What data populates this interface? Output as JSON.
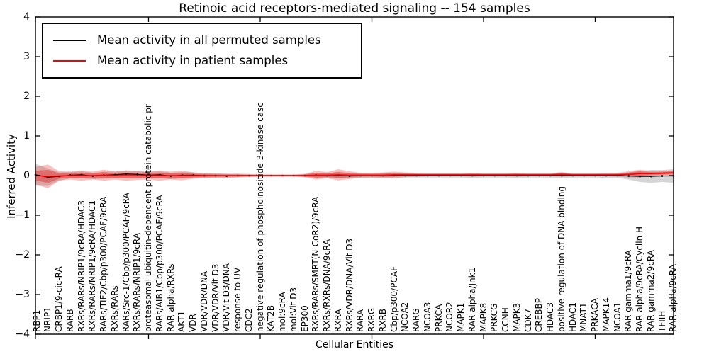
{
  "title": "Retinoic acid receptors-mediated signaling -- 154 samples",
  "axes": {
    "ylabel": "Inferred Activity",
    "xlabel": "Cellular Entities",
    "y_ticks": [
      "4",
      "3",
      "2",
      "1",
      "0",
      "−1",
      "−2",
      "−3",
      "−4"
    ],
    "ylim": [
      -4,
      4
    ]
  },
  "legend": {
    "items": [
      {
        "label": "Mean activity in all permuted samples",
        "color": "#000000"
      },
      {
        "label": "Mean activity in patient samples",
        "color": "#ff0000"
      }
    ]
  },
  "chart_data": {
    "type": "line",
    "title": "Retinoic acid receptors-mediated signaling -- 154 samples",
    "xlabel": "Cellular Entities",
    "ylabel": "Inferred Activity",
    "ylim": [
      -4,
      4
    ],
    "grid": false,
    "legend_position": "upper left",
    "x_major_tick_indices": [
      0,
      10,
      20,
      30,
      40,
      50
    ],
    "categories": [
      "RBP1",
      "NRIP1",
      "CRBP1/9-cic-RA",
      "RARB",
      "RXRs/RARs/NRIP1/9cRA/HDAC3",
      "RXRs/RARs/NRIP1/9cRA/HDAC1",
      "RARs/TIF2/Cbp/p300/PCAF/9cRA",
      "RXRs/RARs",
      "RARs/Src-1/Cbp/p300/PCAF/9cRA",
      "RXRs/RARs/NRIP1/9cRA",
      "proteasomal ubiquitin-dependent protein catabolic pr",
      "RARs/AIB1/Cbp/p300/PCAF/9cRA",
      "RAR alpha/RXRs",
      "AKT1",
      "VDR",
      "VDR/VDR/DNA",
      "VDR/VDR/Vit D3",
      "VDR/Vit D3/DNA",
      "response to UV",
      "CDC2",
      "negative regulation of phosphoinositide 3-kinase casc",
      "KAT2B",
      "mol:9cRA",
      "mol:Vit D3",
      "EP300",
      "RXRs/RARs/SMRT(N-CoR2)/9cRA",
      "RXRs/RXRs/DNA/9cRA",
      "RXRA",
      "RXRs/VDR/DNA/Vit D3",
      "RARA",
      "RXRG",
      "RXRB",
      "Cbp/p300/PCAF",
      "NCOA2",
      "RARG",
      "NCOA3",
      "PRKCA",
      "NCOR2",
      "MAPK1",
      "RAR alpha/Jnk1",
      "MAPK8",
      "PRKCG",
      "CCNH",
      "MAPK3",
      "CDK7",
      "CREBBP",
      "HDAC3",
      "positive regulation of DNA binding",
      "HDAC1",
      "MNAT1",
      "PRKACA",
      "MAPK14",
      "NCOA1",
      "RAR gamma1/9cRA",
      "RAR alpha/9cRA/Cyclin H",
      "RAR gamma2/9cRA",
      "TFIIH",
      "RAR alpha/9cRA"
    ],
    "series": [
      {
        "name": "Mean activity in all permuted samples",
        "color": "#000000",
        "band_color": "#888888",
        "values": [
          0.02,
          -0.04,
          -0.02,
          0.01,
          0.02,
          -0.01,
          0.01,
          0.02,
          0.04,
          0.03,
          0.01,
          0.02,
          -0.01,
          0.01,
          0.01,
          0.0,
          0.0,
          -0.01,
          0.0,
          0.0,
          0.0,
          0.0,
          0.0,
          0.0,
          0.0,
          0.01,
          0.0,
          0.01,
          -0.01,
          0.0,
          0.0,
          0.0,
          0.01,
          0.0,
          0.0,
          0.0,
          0.0,
          0.0,
          0.0,
          0.0,
          0.0,
          0.0,
          0.0,
          0.0,
          0.0,
          0.0,
          0.0,
          0.0,
          0.0,
          0.0,
          0.0,
          0.0,
          0.0,
          -0.01,
          -0.02,
          -0.02,
          -0.01,
          -0.01
        ],
        "band": [
          0.28,
          0.22,
          0.1,
          0.08,
          0.09,
          0.08,
          0.09,
          0.08,
          0.09,
          0.08,
          0.08,
          0.09,
          0.08,
          0.08,
          0.07,
          0.06,
          0.06,
          0.05,
          0.05,
          0.04,
          0.03,
          0.03,
          0.03,
          0.03,
          0.04,
          0.06,
          0.06,
          0.07,
          0.06,
          0.06,
          0.05,
          0.05,
          0.06,
          0.05,
          0.05,
          0.05,
          0.05,
          0.05,
          0.05,
          0.06,
          0.05,
          0.05,
          0.05,
          0.06,
          0.05,
          0.05,
          0.05,
          0.06,
          0.05,
          0.05,
          0.05,
          0.06,
          0.06,
          0.09,
          0.14,
          0.16,
          0.15,
          0.17
        ]
      },
      {
        "name": "Mean activity in patient samples",
        "color": "#ff0000",
        "band_color": "#ee3333",
        "values": [
          0.0,
          -0.02,
          -0.01,
          0.0,
          0.0,
          0.0,
          0.01,
          0.0,
          0.0,
          0.0,
          0.0,
          0.0,
          0.0,
          0.0,
          0.0,
          0.0,
          0.0,
          0.0,
          0.0,
          0.0,
          0.0,
          0.0,
          0.0,
          0.0,
          0.0,
          0.01,
          0.01,
          0.02,
          0.01,
          0.01,
          0.01,
          0.01,
          0.02,
          0.02,
          0.02,
          0.02,
          0.02,
          0.02,
          0.02,
          0.02,
          0.02,
          0.02,
          0.02,
          0.02,
          0.02,
          0.02,
          0.02,
          0.03,
          0.02,
          0.02,
          0.02,
          0.02,
          0.02,
          0.03,
          0.05,
          0.05,
          0.06,
          0.07
        ],
        "band": [
          0.22,
          0.3,
          0.12,
          0.1,
          0.13,
          0.1,
          0.14,
          0.1,
          0.13,
          0.11,
          0.1,
          0.13,
          0.1,
          0.12,
          0.08,
          0.06,
          0.05,
          0.05,
          0.04,
          0.03,
          0.02,
          0.02,
          0.02,
          0.02,
          0.04,
          0.11,
          0.08,
          0.14,
          0.1,
          0.06,
          0.06,
          0.07,
          0.08,
          0.06,
          0.05,
          0.04,
          0.04,
          0.04,
          0.04,
          0.05,
          0.04,
          0.04,
          0.04,
          0.05,
          0.04,
          0.04,
          0.04,
          0.06,
          0.04,
          0.04,
          0.04,
          0.04,
          0.05,
          0.08,
          0.1,
          0.06,
          0.06,
          0.06
        ]
      }
    ]
  }
}
